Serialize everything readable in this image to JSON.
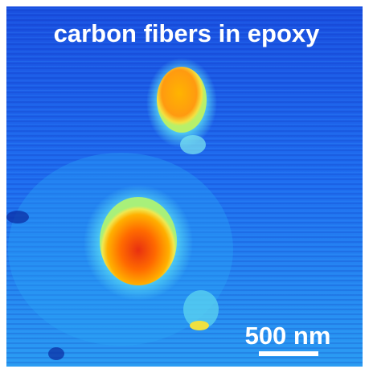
{
  "image": {
    "title": "carbon fibers in epoxy",
    "scale_bar": {
      "label": "500 nm"
    }
  }
}
